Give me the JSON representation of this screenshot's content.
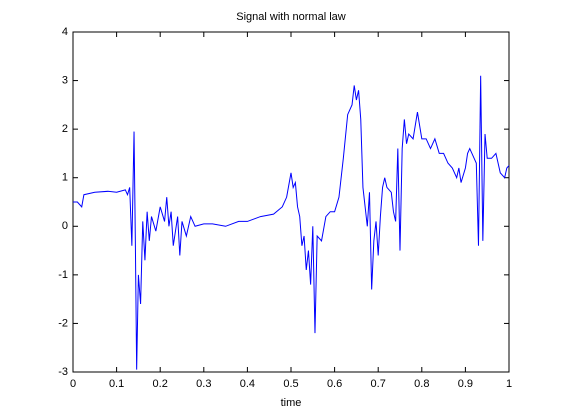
{
  "chart_data": {
    "type": "line",
    "title": "Signal with normal law",
    "xlabel": "time",
    "xlim": [
      0,
      1
    ],
    "ylim": [
      -3,
      4
    ],
    "xticks": [
      0,
      0.1,
      0.2,
      0.3,
      0.4,
      0.5,
      0.6,
      0.7,
      0.8,
      0.9,
      1
    ],
    "yticks": [
      -3,
      -2,
      -1,
      0,
      1,
      2,
      3,
      4
    ],
    "grid": false,
    "x": [
      0,
      0.01,
      0.02,
      0.025,
      0.05,
      0.08,
      0.1,
      0.12,
      0.125,
      0.13,
      0.135,
      0.14,
      0.143,
      0.146,
      0.15,
      0.155,
      0.16,
      0.165,
      0.17,
      0.175,
      0.18,
      0.19,
      0.2,
      0.21,
      0.215,
      0.22,
      0.225,
      0.23,
      0.24,
      0.245,
      0.25,
      0.26,
      0.27,
      0.28,
      0.3,
      0.32,
      0.35,
      0.38,
      0.4,
      0.43,
      0.46,
      0.48,
      0.49,
      0.5,
      0.505,
      0.51,
      0.515,
      0.52,
      0.525,
      0.53,
      0.535,
      0.54,
      0.545,
      0.55,
      0.555,
      0.56,
      0.57,
      0.58,
      0.59,
      0.6,
      0.61,
      0.62,
      0.63,
      0.64,
      0.645,
      0.65,
      0.655,
      0.66,
      0.665,
      0.67,
      0.675,
      0.68,
      0.685,
      0.69,
      0.695,
      0.7,
      0.705,
      0.71,
      0.715,
      0.72,
      0.73,
      0.735,
      0.74,
      0.745,
      0.75,
      0.755,
      0.76,
      0.765,
      0.77,
      0.78,
      0.79,
      0.8,
      0.81,
      0.82,
      0.83,
      0.84,
      0.85,
      0.86,
      0.87,
      0.88,
      0.885,
      0.89,
      0.9,
      0.905,
      0.91,
      0.92,
      0.925,
      0.93,
      0.935,
      0.94,
      0.945,
      0.95,
      0.96,
      0.97,
      0.98,
      0.99,
      0.995,
      1.0
    ],
    "series": [
      {
        "color": "#0000ff",
        "values": [
          0.5,
          0.5,
          0.4,
          0.65,
          0.7,
          0.72,
          0.7,
          0.75,
          0.65,
          0.8,
          -0.4,
          1.95,
          -0.3,
          -2.95,
          -1.0,
          -1.6,
          0.1,
          -0.7,
          0.3,
          -0.3,
          0.2,
          -0.1,
          0.4,
          0.1,
          0.6,
          0.0,
          0.3,
          -0.4,
          0.2,
          -0.6,
          0.1,
          -0.2,
          0.2,
          0.0,
          0.05,
          0.05,
          0.0,
          0.1,
          0.1,
          0.2,
          0.25,
          0.4,
          0.6,
          1.1,
          0.8,
          0.9,
          0.4,
          0.2,
          -0.4,
          -0.2,
          -0.9,
          -0.5,
          -1.2,
          0.0,
          -2.2,
          -0.2,
          -0.3,
          0.2,
          0.3,
          0.3,
          0.6,
          1.4,
          2.3,
          2.5,
          2.9,
          2.6,
          2.8,
          2.2,
          0.8,
          0.4,
          0.0,
          0.7,
          -1.3,
          -0.3,
          0.1,
          -0.6,
          0.2,
          0.8,
          1.0,
          0.8,
          0.7,
          0.3,
          0.1,
          1.6,
          -0.5,
          1.6,
          2.2,
          1.7,
          1.9,
          1.8,
          2.35,
          1.8,
          1.8,
          1.6,
          1.8,
          1.5,
          1.5,
          1.3,
          1.2,
          1.0,
          1.2,
          0.9,
          1.2,
          1.5,
          1.6,
          1.4,
          1.3,
          -0.4,
          3.1,
          -0.3,
          1.9,
          1.4,
          1.4,
          1.5,
          1.1,
          1.0,
          1.2,
          1.25
        ]
      }
    ]
  }
}
